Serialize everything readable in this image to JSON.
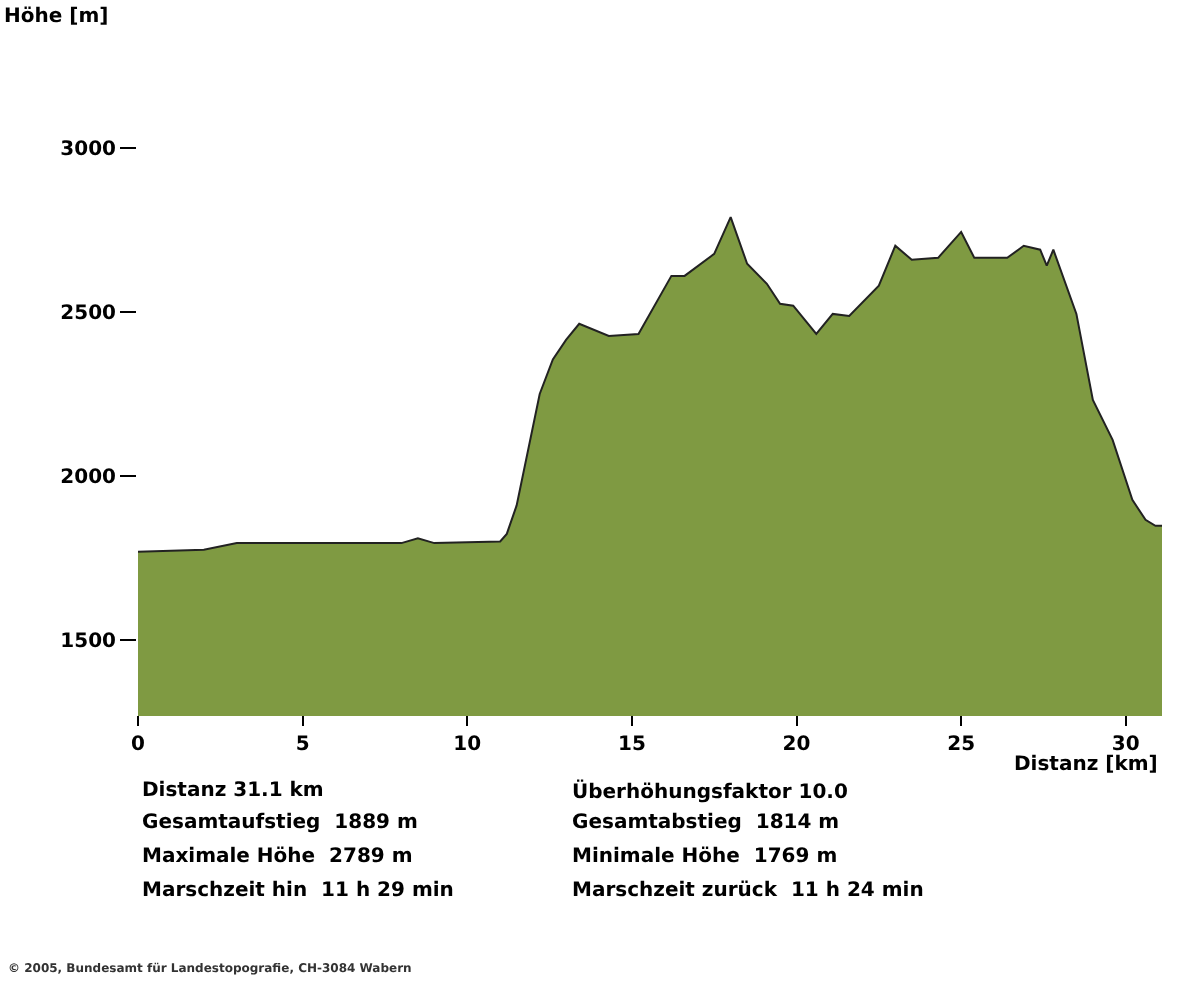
{
  "chart_data": {
    "type": "area",
    "xlabel": "Distanz [km]",
    "x": [
      0,
      2,
      3,
      5,
      8,
      8.5,
      9,
      11,
      11.2,
      11.5,
      12.2,
      12.6,
      13.0,
      13.4,
      14.3,
      15.2,
      16.2,
      16.6,
      17.5,
      18.0,
      18.5,
      19.1,
      19.5,
      19.9,
      20.6,
      21.1,
      21.6,
      22.5,
      23.0,
      23.5,
      24.3,
      25.0,
      25.4,
      26.4,
      26.9,
      27.4,
      27.6,
      27.8,
      28.5,
      29.0,
      29.6,
      30.2,
      30.6,
      30.9,
      31.1
    ],
    "series": [
      {
        "color": "#7f9a42",
        "values": [
          1769,
          1775,
          1795,
          1795,
          1795,
          1810,
          1795,
          1800,
          1823,
          1910,
          2250,
          2355,
          2415,
          2464,
          2427,
          2433,
          2610,
          2610,
          2677,
          2789,
          2647,
          2586,
          2525,
          2519,
          2433,
          2494,
          2488,
          2580,
          2702,
          2659,
          2665,
          2744,
          2665,
          2665,
          2702,
          2690,
          2641,
          2690,
          2494,
          2232,
          2110,
          1927,
          1866,
          1848,
          1848
        ]
      }
    ],
    "xlim": [
      0,
      31.1
    ],
    "xticks": [
      0,
      5,
      10,
      15,
      20,
      25,
      30
    ],
    "ylim": [
      1280,
      3000
    ],
    "yticks": [
      1500,
      2000,
      2500,
      3000
    ],
    "grid": false,
    "annotations": [
      "Höhe [m]",
      "Distanz 31.1 km",
      "Gesamtaufstieg  1889 m",
      "Maximale Höhe  2789 m",
      "Marschzeit hin  11 h 29 min",
      "Überhöhungsfaktor 10.0",
      "Gesamtabstieg  1814 m",
      "Minimale Höhe  1769 m",
      "Marschzeit zurück  11 h 24 min",
      "© 2005, Bundesamt für Landestopografie, CH-3084 Wabern"
    ]
  }
}
